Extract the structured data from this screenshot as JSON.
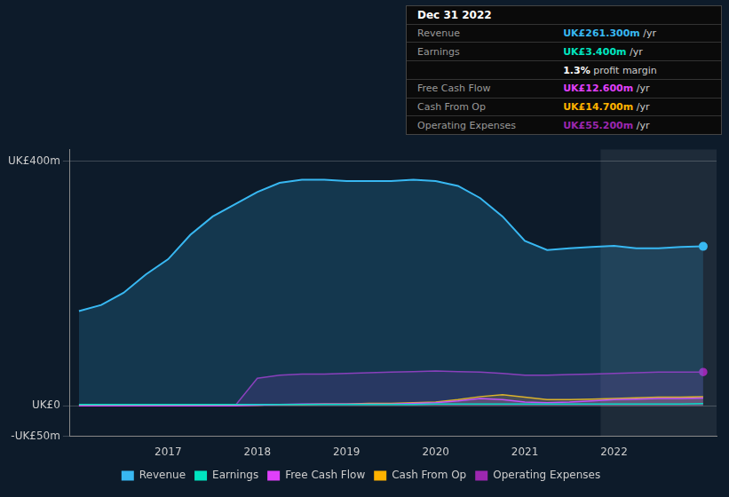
{
  "chart_data": {
    "type": "line",
    "x": [
      2016,
      2016.25,
      2016.5,
      2016.75,
      2017,
      2017.25,
      2017.5,
      2017.75,
      2018,
      2018.25,
      2018.5,
      2018.75,
      2019,
      2019.25,
      2019.5,
      2019.75,
      2020,
      2020.25,
      2020.5,
      2020.75,
      2021,
      2021.25,
      2021.5,
      2021.75,
      2022,
      2022.25,
      2022.5,
      2022.75,
      2023
    ],
    "series": [
      {
        "name": "Revenue",
        "color": "#38b8f2",
        "type": "area",
        "marker": "last",
        "values": [
          155,
          165,
          185,
          215,
          240,
          280,
          310,
          330,
          350,
          365,
          370,
          370,
          368,
          368,
          368,
          370,
          368,
          360,
          340,
          310,
          270,
          255,
          258,
          260,
          262,
          258,
          258,
          260,
          261
        ]
      },
      {
        "name": "Earnings",
        "color": "#00e5c0",
        "type": "line",
        "values": [
          2,
          2,
          2,
          2,
          2,
          2,
          2,
          2,
          2,
          2,
          2,
          2,
          2,
          2,
          2,
          2,
          3,
          3,
          3,
          3,
          3,
          3,
          3,
          3,
          3,
          3,
          3,
          3,
          3.4
        ]
      },
      {
        "name": "Free Cash Flow",
        "color": "#e040fb",
        "type": "area",
        "values": [
          0,
          0,
          0,
          0,
          0,
          0,
          0,
          0,
          1,
          2,
          3,
          3,
          3,
          3,
          3,
          4,
          5,
          8,
          12,
          10,
          6,
          5,
          6,
          8,
          10,
          11,
          12,
          12,
          12.6
        ]
      },
      {
        "name": "Cash From Op",
        "color": "#ffb300",
        "type": "area",
        "values": [
          1,
          1,
          1,
          1,
          1,
          1,
          1,
          1,
          1,
          2,
          2,
          3,
          3,
          4,
          4,
          5,
          6,
          10,
          15,
          18,
          14,
          10,
          10,
          11,
          12,
          13,
          14,
          14,
          14.7
        ]
      },
      {
        "name": "Operating Expenses",
        "color": "#9c27b0",
        "type": "area",
        "marker": "last",
        "values": [
          0,
          0,
          0,
          0,
          0,
          0,
          0,
          0,
          45,
          50,
          52,
          52,
          53,
          54,
          55,
          56,
          57,
          56,
          55,
          53,
          50,
          50,
          51,
          52,
          53,
          54,
          55,
          55,
          55.2
        ]
      }
    ],
    "xlim": [
      2015.9,
      2023.15
    ],
    "xticks": [
      2017,
      2018,
      2019,
      2020,
      2021,
      2022
    ],
    "ylim": [
      -50,
      420
    ],
    "yticks": [
      {
        "value": -50,
        "label": "-UK£50m"
      },
      {
        "value": 0,
        "label": "UK£0"
      },
      {
        "value": 400,
        "label": "UK£400m"
      }
    ],
    "grid": "y",
    "legend": "bottom",
    "span": [
      2021.85,
      2023.3
    ],
    "table": {
      "title": "Dec 31 2022",
      "rows": [
        {
          "label": "Revenue",
          "value": "UK£261.300m /yr",
          "color": "#38b8f2"
        },
        {
          "label": "Earnings",
          "value": "UK£3.400m /yr",
          "color": "#00e5c0"
        },
        {
          "value": "1.3% profit margin",
          "color": "#ffffff"
        },
        {
          "label": "Free Cash Flow",
          "value": "UK£12.600m /yr",
          "color": "#e040fb"
        },
        {
          "label": "Cash From Op",
          "value": "UK£14.700m /yr",
          "color": "#ffb300"
        },
        {
          "label": "Operating Expenses",
          "value": "UK£55.200m /yr",
          "color": "#9c27b0"
        }
      ]
    }
  }
}
